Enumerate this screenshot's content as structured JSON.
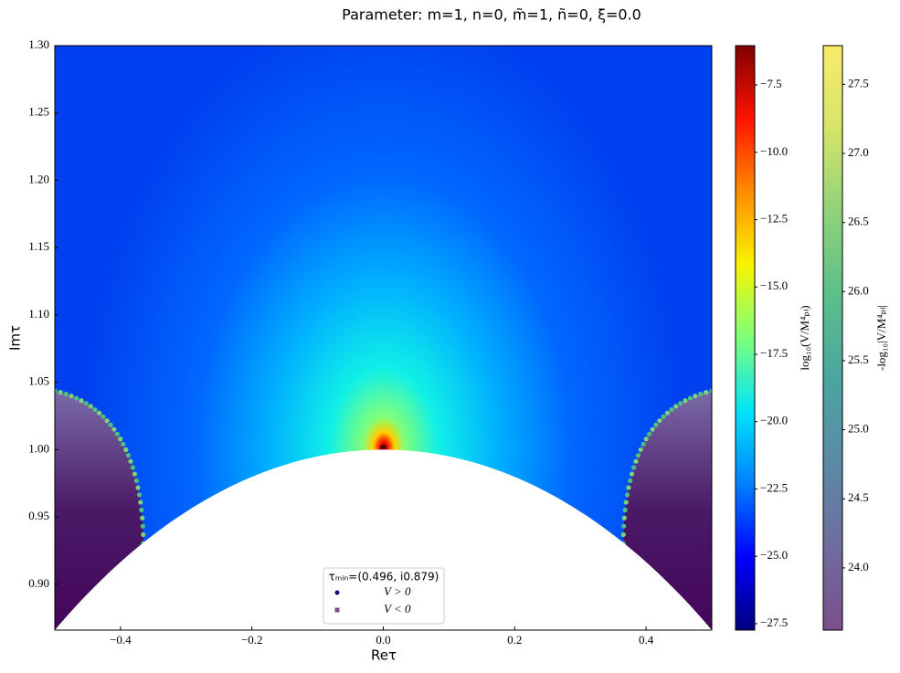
{
  "chart_data": {
    "type": "heatmap",
    "title": "Parameter: m=1, n=0, m̃=1, ñ=0, ξ=0.0",
    "xlabel": "Reτ",
    "ylabel": "Imτ",
    "xlim": [
      -0.5,
      0.5
    ],
    "ylim": [
      0.866,
      1.3
    ],
    "xticks": [
      {
        "value": -0.4,
        "label": "−0.4"
      },
      {
        "value": -0.2,
        "label": "−0.2"
      },
      {
        "value": 0,
        "label": "0.0"
      },
      0.2,
      0.4
    ],
    "yticks": [
      {
        "value": 0.9,
        "label": "0.90"
      },
      0.95,
      {
        "value": 1.0,
        "label": "1.00"
      },
      1.05,
      {
        "value": 1.1,
        "label": "1.10"
      },
      1.15,
      {
        "value": 1.2,
        "label": "1.20"
      },
      1.25,
      {
        "value": 1.3,
        "label": "1.30"
      }
    ],
    "colorbars": [
      {
        "label": "log₁₀(V/M⁴ₚₗ)",
        "lim": [
          -27.74,
          -6.04
        ],
        "ticks": [
          {
            "value": -27.5,
            "label": "−27.5"
          },
          {
            "value": -25,
            "label": "−25.0"
          },
          {
            "value": -22.5,
            "label": "−22.5"
          },
          {
            "value": -20,
            "label": "−20.0"
          },
          {
            "value": -17.5,
            "label": "−17.5"
          },
          {
            "value": -15,
            "label": "−15.0"
          },
          {
            "value": -12.5,
            "label": "−12.5"
          },
          {
            "value": -10,
            "label": "−10.0"
          },
          {
            "value": -7.5,
            "label": "−7.5"
          }
        ],
        "colors": [
          "#00007f",
          "#0000ff",
          "#0080ff",
          "#00e5f8",
          "#7dff7a",
          "#f8f500",
          "#ff8c00",
          "#ff1300",
          "#7f0000"
        ]
      },
      {
        "label": "-log₁₀|V/M⁴ₚₗ|",
        "lim": [
          23.55,
          27.78
        ],
        "ticks": [
          {
            "value": 24,
            "label": "24.0"
          },
          24.5,
          {
            "value": 25,
            "label": "25.0"
          },
          25.5,
          {
            "value": 26,
            "label": "26.0"
          },
          26.5,
          {
            "value": 27,
            "label": "27.0"
          },
          27.5
        ],
        "colors": [
          "#7b4f8c",
          "#6f6c9e",
          "#5b8aa6",
          "#4aa5a0",
          "#5bbf8a",
          "#8fd27a",
          "#d6e46a",
          "#f8ec6a"
        ]
      }
    ],
    "legend": {
      "title": "τₘᵢₙ=(0.496, i0.879)",
      "location": "lower center"
    },
    "series": [
      {
        "name": "V > 0",
        "color": "#0b0b7a",
        "marker": "circle"
      },
      {
        "name": "V < 0",
        "color": "#7b4f8c",
        "marker": "square"
      }
    ]
  }
}
